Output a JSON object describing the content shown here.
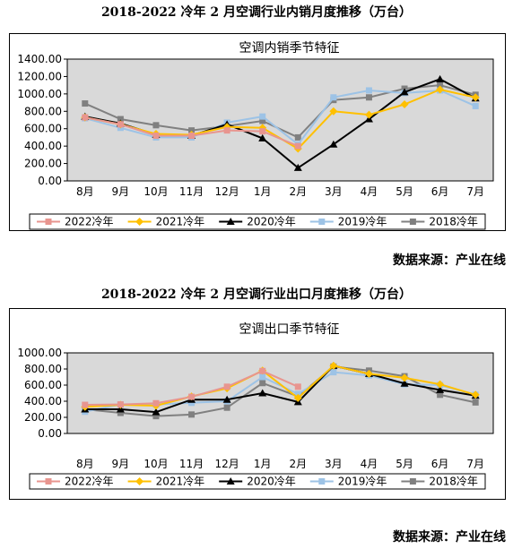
{
  "header": {
    "title1": "2018-2022 冷年 2 月空调行业内销月度推移（万台）",
    "title2": "2018-2022 冷年 2 月空调行业出口月度推移（万台）",
    "source1": "数据来源：产业在线",
    "source2": "数据来源：产业在线"
  },
  "colors": {
    "2022冷年": "#e8958f",
    "2021冷年": "#ffc000",
    "2020冷年": "#000000",
    "2019冷年": "#9dc3e6",
    "2018冷年": "#808080"
  },
  "chart_data": [
    {
      "type": "line",
      "title": "空调内销季节特征",
      "categories": [
        "8月",
        "9月",
        "10月",
        "11月",
        "12月",
        "1月",
        "2月",
        "3月",
        "4月",
        "5月",
        "6月",
        "7月"
      ],
      "y_ticks": [
        "0.00",
        "200.00",
        "400.00",
        "600.00",
        "800.00",
        "1000.00",
        "1200.00",
        "1400.00"
      ],
      "ylim": [
        0,
        1400
      ],
      "grid": false,
      "legend_position": "bottom",
      "series": [
        {
          "name": "2022冷年",
          "marker": "square",
          "values": [
            730,
            650,
            520,
            520,
            580,
            570,
            400,
            null,
            null,
            null,
            null,
            null
          ]
        },
        {
          "name": "2021冷年",
          "marker": "diamond",
          "values": [
            730,
            650,
            540,
            530,
            620,
            610,
            370,
            800,
            760,
            880,
            1050,
            960
          ]
        },
        {
          "name": "2020冷年",
          "marker": "triangle",
          "values": [
            740,
            660,
            530,
            520,
            650,
            490,
            150,
            420,
            710,
            1020,
            1170,
            950
          ]
        },
        {
          "name": "2019冷年",
          "marker": "square",
          "values": [
            720,
            610,
            500,
            500,
            670,
            740,
            420,
            960,
            1040,
            1010,
            1040,
            860
          ]
        },
        {
          "name": "2018冷年",
          "marker": "square",
          "values": [
            890,
            710,
            640,
            580,
            630,
            690,
            500,
            930,
            960,
            1060,
            1100,
            990
          ]
        }
      ]
    },
    {
      "type": "line",
      "title": "空调出口季节特征",
      "categories": [
        "8月",
        "9月",
        "10月",
        "11月",
        "12月",
        "1月",
        "2月",
        "3月",
        "4月",
        "5月",
        "6月",
        "7月"
      ],
      "y_ticks": [
        "0.00",
        "200.00",
        "400.00",
        "600.00",
        "800.00",
        "1000.00"
      ],
      "ylim": [
        0,
        1000
      ],
      "grid": false,
      "legend_position": "bottom",
      "series": [
        {
          "name": "2022冷年",
          "marker": "square",
          "values": [
            355,
            360,
            375,
            455,
            580,
            775,
            580,
            null,
            null,
            null,
            null,
            null
          ]
        },
        {
          "name": "2021冷年",
          "marker": "diamond",
          "values": [
            330,
            355,
            345,
            460,
            560,
            780,
            440,
            840,
            740,
            690,
            610,
            480
          ]
        },
        {
          "name": "2020冷年",
          "marker": "triangle",
          "values": [
            300,
            300,
            265,
            420,
            420,
            500,
            390,
            840,
            740,
            620,
            540,
            470
          ]
        },
        {
          "name": "2019冷年",
          "marker": "square",
          "values": [
            270,
            360,
            360,
            380,
            400,
            700,
            490,
            760,
            720,
            610,
            600,
            480
          ]
        },
        {
          "name": "2018冷年",
          "marker": "square",
          "values": [
            300,
            255,
            215,
            235,
            320,
            625,
            460,
            830,
            780,
            710,
            480,
            385
          ]
        }
      ]
    }
  ]
}
